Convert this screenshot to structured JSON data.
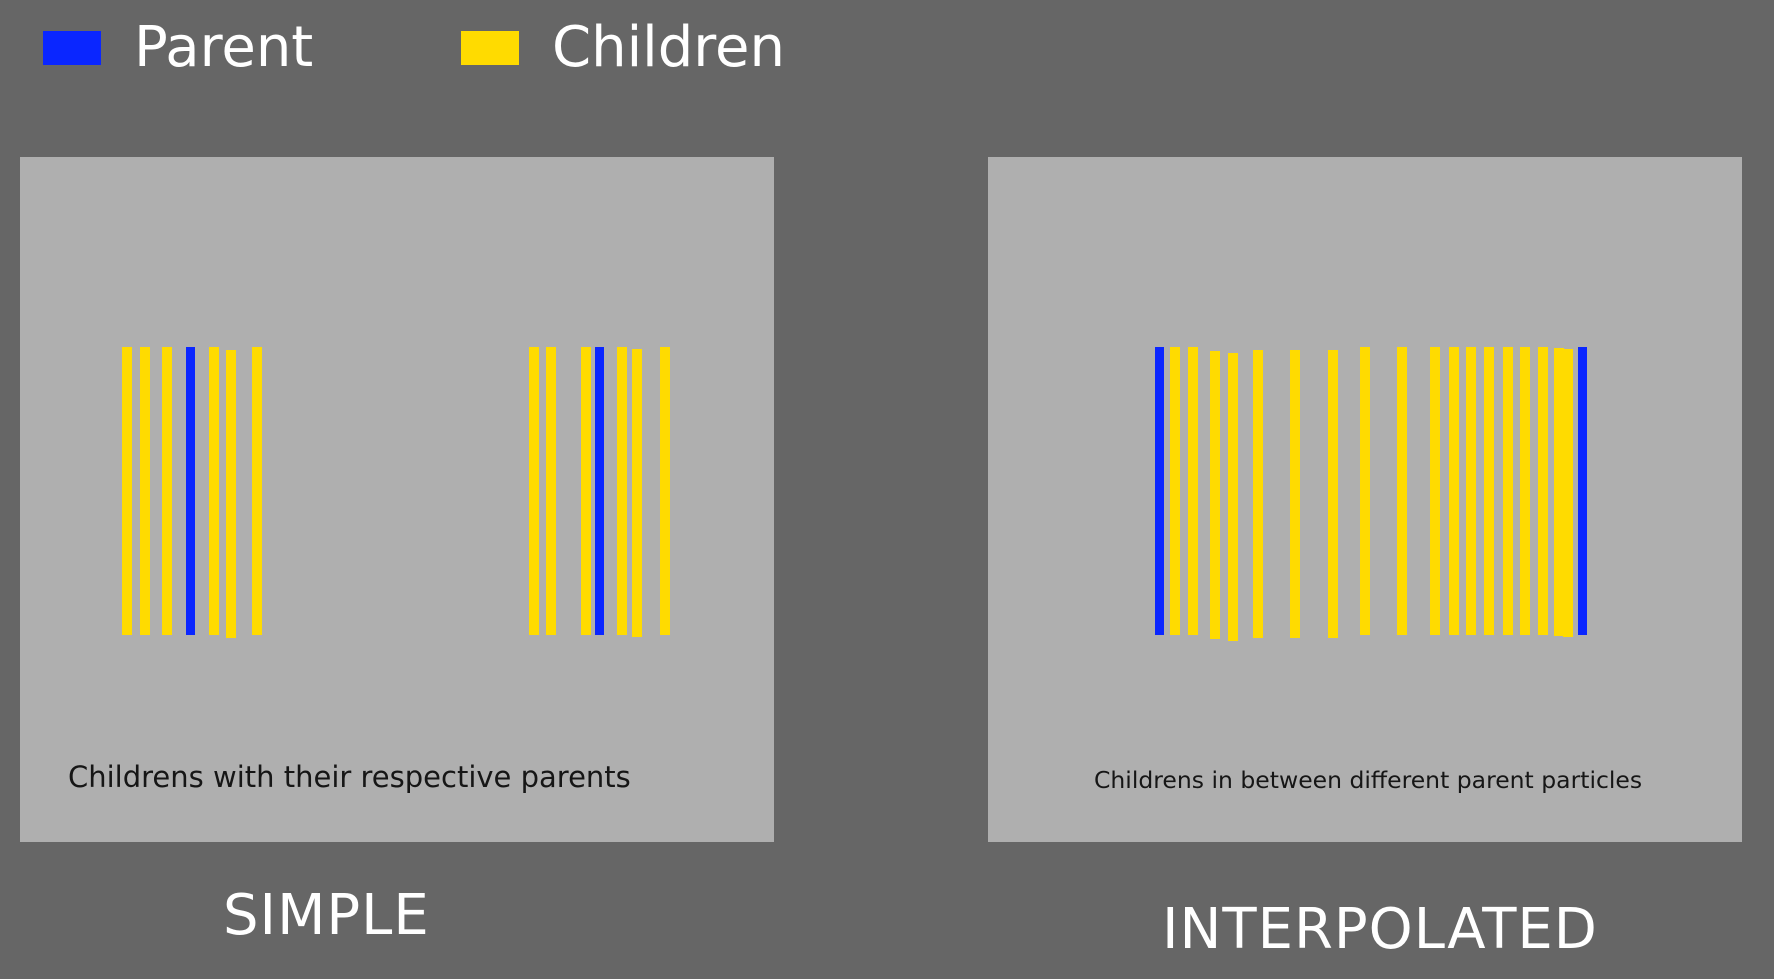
{
  "colors": {
    "background": "#666666",
    "panel": "#afafaf",
    "parent": "#0a26ff",
    "child": "#ffdb00",
    "label": "#ffffff",
    "caption": "#161616"
  },
  "legend": [
    {
      "name": "parent",
      "label": "Parent",
      "color": "#0a26ff"
    },
    {
      "name": "children",
      "label": "Children",
      "color": "#ffdb00"
    }
  ],
  "panels": [
    {
      "name": "simple",
      "title": "SIMPLE",
      "caption": "Childrens with their respective parents",
      "bars": [
        {
          "type": "child",
          "x": 102,
          "w": 10,
          "top": 190,
          "bottom": 478
        },
        {
          "type": "child",
          "x": 120,
          "w": 10,
          "top": 190,
          "bottom": 478
        },
        {
          "type": "child",
          "x": 142,
          "w": 10,
          "top": 190,
          "bottom": 478
        },
        {
          "type": "parent",
          "x": 166,
          "w": 9,
          "top": 190,
          "bottom": 478
        },
        {
          "type": "child",
          "x": 189,
          "w": 10,
          "top": 190,
          "bottom": 478
        },
        {
          "type": "child",
          "x": 206,
          "w": 10,
          "top": 193,
          "bottom": 481
        },
        {
          "type": "child",
          "x": 232,
          "w": 10,
          "top": 190,
          "bottom": 478
        },
        {
          "type": "child",
          "x": 509,
          "w": 10,
          "top": 190,
          "bottom": 478
        },
        {
          "type": "child",
          "x": 526,
          "w": 10,
          "top": 190,
          "bottom": 478
        },
        {
          "type": "child",
          "x": 561,
          "w": 10,
          "top": 190,
          "bottom": 478
        },
        {
          "type": "parent",
          "x": 575,
          "w": 9,
          "top": 190,
          "bottom": 478
        },
        {
          "type": "child",
          "x": 597,
          "w": 10,
          "top": 190,
          "bottom": 478
        },
        {
          "type": "child",
          "x": 612,
          "w": 10,
          "top": 192,
          "bottom": 480
        },
        {
          "type": "child",
          "x": 640,
          "w": 10,
          "top": 190,
          "bottom": 478
        }
      ]
    },
    {
      "name": "interpolated",
      "title": "INTERPOLATED",
      "caption": "Childrens in between different parent particles",
      "bars": [
        {
          "type": "parent",
          "x": 167,
          "w": 9,
          "top": 190,
          "bottom": 478
        },
        {
          "type": "child",
          "x": 182,
          "w": 10,
          "top": 190,
          "bottom": 478
        },
        {
          "type": "child",
          "x": 200,
          "w": 10,
          "top": 190,
          "bottom": 478
        },
        {
          "type": "child",
          "x": 222,
          "w": 10,
          "top": 194,
          "bottom": 482
        },
        {
          "type": "child",
          "x": 240,
          "w": 10,
          "top": 196,
          "bottom": 484
        },
        {
          "type": "child",
          "x": 265,
          "w": 10,
          "top": 193,
          "bottom": 481
        },
        {
          "type": "child",
          "x": 302,
          "w": 10,
          "top": 193,
          "bottom": 481
        },
        {
          "type": "child",
          "x": 340,
          "w": 10,
          "top": 193,
          "bottom": 481
        },
        {
          "type": "child",
          "x": 372,
          "w": 10,
          "top": 190,
          "bottom": 478
        },
        {
          "type": "child",
          "x": 409,
          "w": 10,
          "top": 190,
          "bottom": 478
        },
        {
          "type": "child",
          "x": 442,
          "w": 10,
          "top": 190,
          "bottom": 478
        },
        {
          "type": "child",
          "x": 461,
          "w": 10,
          "top": 190,
          "bottom": 478
        },
        {
          "type": "child",
          "x": 478,
          "w": 10,
          "top": 190,
          "bottom": 478
        },
        {
          "type": "child",
          "x": 496,
          "w": 10,
          "top": 190,
          "bottom": 478
        },
        {
          "type": "child",
          "x": 515,
          "w": 10,
          "top": 190,
          "bottom": 478
        },
        {
          "type": "child",
          "x": 532,
          "w": 10,
          "top": 190,
          "bottom": 478
        },
        {
          "type": "child",
          "x": 550,
          "w": 10,
          "top": 190,
          "bottom": 478
        },
        {
          "type": "child",
          "x": 566,
          "w": 10,
          "top": 191,
          "bottom": 479
        },
        {
          "type": "child",
          "x": 575,
          "w": 10,
          "top": 192,
          "bottom": 480
        },
        {
          "type": "parent",
          "x": 590,
          "w": 9,
          "top": 190,
          "bottom": 478
        }
      ]
    }
  ]
}
